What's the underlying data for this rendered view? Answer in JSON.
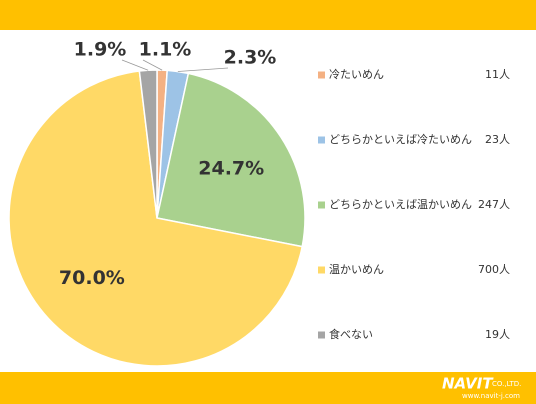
{
  "chart_data": {
    "type": "pie",
    "categories": [
      "冷たいめん",
      "どちらかといえば冷たいめん",
      "どちらかといえば温かいめん",
      "温かいめん",
      "食べない"
    ],
    "values": [
      1.1,
      2.3,
      24.7,
      70.0,
      1.9
    ],
    "value_labels": [
      "1.1%",
      "2.3%",
      "24.7%",
      "70.0%",
      "1.9%"
    ],
    "counts": [
      "11人",
      "23人",
      "247人",
      "700人",
      "19人"
    ],
    "colors": [
      "#f4b183",
      "#9dc3e6",
      "#a9d18e",
      "#ffd966",
      "#a5a5a5"
    ]
  },
  "footer": {
    "logo": "NAVIT",
    "company": "CO.,LTD.",
    "url": "www.navit-j.com"
  }
}
